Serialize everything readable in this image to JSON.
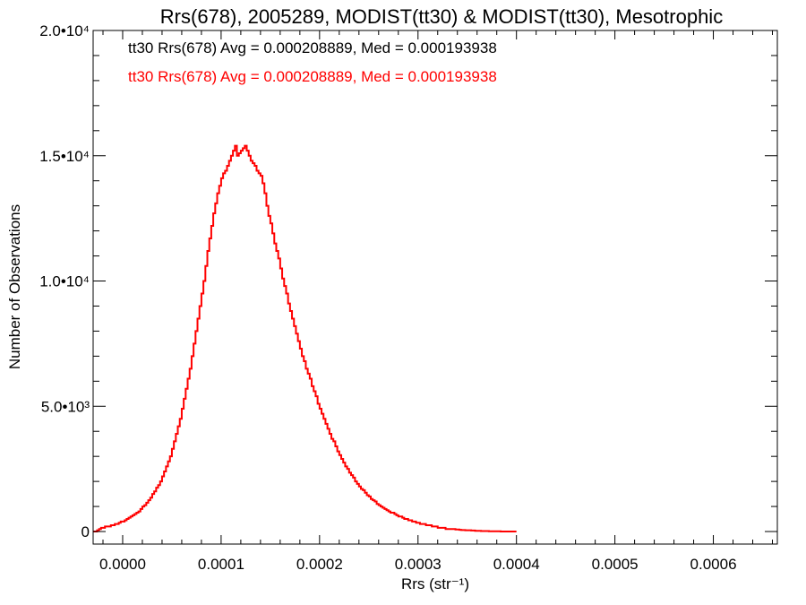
{
  "chart_data": {
    "type": "histogram",
    "title": "Rrs(678), 2005289, MODIST(tt30) & MODIST(tt30), Mesotrophic",
    "xlabel": "Rrs (str⁻¹)",
    "ylabel": "Number of Observations",
    "xlim": [
      -3e-05,
      0.000665
    ],
    "ylim": [
      -500,
      20000
    ],
    "x_ticks": [
      {
        "value": 0.0,
        "label": "0.0000"
      },
      {
        "value": 0.0001,
        "label": "0.0001"
      },
      {
        "value": 0.0002,
        "label": "0.0002"
      },
      {
        "value": 0.0003,
        "label": "0.0003"
      },
      {
        "value": 0.0004,
        "label": "0.0004"
      },
      {
        "value": 0.0005,
        "label": "0.0005"
      },
      {
        "value": 0.0006,
        "label": "0.0006"
      }
    ],
    "y_ticks": [
      {
        "value": 0,
        "label": "0"
      },
      {
        "value": 5000,
        "label": "5.0•10³"
      },
      {
        "value": 10000,
        "label": "1.0•10⁴"
      },
      {
        "value": 15000,
        "label": "1.5•10⁴"
      },
      {
        "value": 20000,
        "label": "2.0•10⁴"
      }
    ],
    "legend": [
      {
        "text": "tt30 Rrs(678) Avg = 0.000208889, Med = 0.000193938",
        "color": "#000000"
      },
      {
        "text": "tt30 Rrs(678) Avg = 0.000208889, Med = 0.000193938",
        "color": "#ff0000"
      }
    ],
    "series_color": "#ff0000",
    "bin_width": 2e-06,
    "x_start": -3e-05,
    "counts": [
      0,
      0,
      50,
      100,
      150,
      150,
      200,
      200,
      200,
      250,
      250,
      300,
      300,
      350,
      400,
      400,
      450,
      500,
      550,
      600,
      650,
      700,
      750,
      800,
      900,
      1000,
      1050,
      1150,
      1250,
      1350,
      1500,
      1600,
      1750,
      1850,
      2000,
      2200,
      2400,
      2600,
      2800,
      3000,
      3300,
      3600,
      3900,
      4200,
      4500,
      4900,
      5300,
      5700,
      6100,
      6500,
      7000,
      7500,
      8000,
      8500,
      9000,
      9500,
      10000,
      10600,
      11200,
      11700,
      12200,
      12700,
      13100,
      13500,
      13800,
      14100,
      14300,
      14400,
      14600,
      14800,
      15000,
      15200,
      15400,
      15000,
      15100,
      15200,
      15300,
      15400,
      15200,
      15000,
      14800,
      14700,
      14600,
      14400,
      14300,
      14200,
      13900,
      13500,
      13000,
      12600,
      12300,
      11900,
      11500,
      11200,
      10900,
      10500,
      10100,
      9800,
      9500,
      9100,
      8800,
      8500,
      8200,
      7900,
      7600,
      7300,
      7000,
      6800,
      6500,
      6300,
      6100,
      5800,
      5600,
      5400,
      5100,
      4900,
      4700,
      4500,
      4300,
      4100,
      3900,
      3700,
      3600,
      3400,
      3200,
      3050,
      2900,
      2750,
      2600,
      2500,
      2350,
      2250,
      2150,
      2000,
      1900,
      1800,
      1700,
      1650,
      1550,
      1450,
      1400,
      1300,
      1250,
      1200,
      1100,
      1050,
      1000,
      950,
      900,
      850,
      800,
      750,
      750,
      700,
      650,
      600,
      600,
      550,
      500,
      500,
      450,
      450,
      400,
      400,
      350,
      350,
      300,
      300,
      300,
      250,
      250,
      250,
      200,
      200,
      200,
      150,
      150,
      150,
      150,
      100,
      100,
      100,
      100,
      100,
      80,
      80,
      70,
      60,
      60,
      50,
      50,
      50,
      40,
      40,
      30,
      30,
      30,
      20,
      20,
      20,
      20,
      10,
      10,
      10,
      10,
      10,
      10,
      0,
      0,
      0,
      0,
      0,
      0,
      0,
      0
    ]
  }
}
